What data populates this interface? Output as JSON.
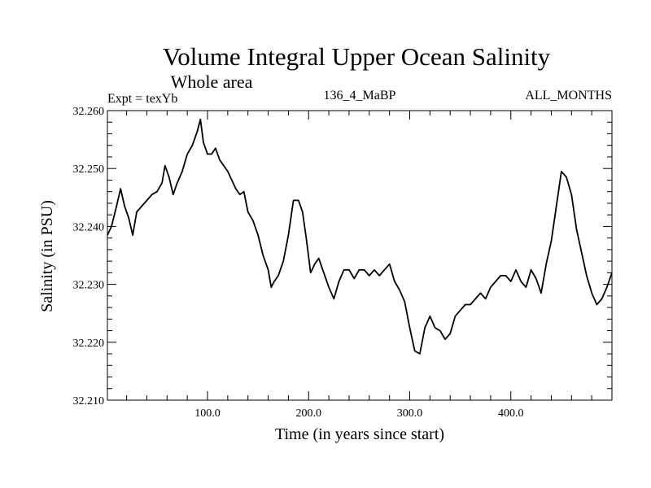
{
  "chart_data": {
    "type": "line",
    "title": "Volume Integral Upper Ocean Salinity",
    "subtitle": "Whole area",
    "header_left": "Expt = texYb",
    "header_center": "136_4_MaBP",
    "header_right": "ALL_MONTHS",
    "xlabel": "Time (in years since start)",
    "ylabel": "Salinity (in PSU)",
    "xlim": [
      1,
      500
    ],
    "ylim": [
      32.21,
      32.26
    ],
    "x_ticks": [
      100,
      200,
      300,
      400
    ],
    "x_tick_labels": [
      "100.0",
      "200.0",
      "300.0",
      "400.0"
    ],
    "y_ticks": [
      32.21,
      32.22,
      32.23,
      32.24,
      32.25,
      32.26
    ],
    "y_tick_labels": [
      "32.210",
      "32.220",
      "32.230",
      "32.240",
      "32.250",
      "32.260"
    ],
    "grid": false,
    "series": [
      {
        "color": "#000000",
        "x": [
          1,
          5,
          10,
          14,
          18,
          22,
          26,
          30,
          35,
          40,
          45,
          50,
          55,
          58,
          62,
          66,
          70,
          75,
          80,
          85,
          90,
          93,
          96,
          100,
          104,
          108,
          112,
          116,
          120,
          124,
          128,
          132,
          136,
          140,
          145,
          150,
          155,
          160,
          163,
          166,
          170,
          175,
          180,
          185,
          190,
          194,
          198,
          202,
          206,
          210,
          215,
          220,
          225,
          230,
          235,
          240,
          245,
          250,
          255,
          260,
          265,
          270,
          275,
          280,
          285,
          290,
          295,
          300,
          305,
          310,
          315,
          320,
          325,
          330,
          335,
          340,
          345,
          350,
          355,
          360,
          365,
          370,
          375,
          380,
          385,
          390,
          395,
          400,
          405,
          410,
          415,
          420,
          425,
          430,
          435,
          440,
          445,
          450,
          455,
          460,
          465,
          470,
          475,
          480,
          485,
          490,
          495,
          500
        ],
        "y": [
          32.2385,
          32.24,
          32.2435,
          32.2465,
          32.2435,
          32.2415,
          32.2385,
          32.2425,
          32.2435,
          32.2445,
          32.2455,
          32.246,
          32.2475,
          32.2505,
          32.2485,
          32.2455,
          32.2475,
          32.2495,
          32.2525,
          32.254,
          32.2565,
          32.2585,
          32.2545,
          32.2525,
          32.2525,
          32.2535,
          32.2515,
          32.2505,
          32.2495,
          32.248,
          32.2465,
          32.2455,
          32.246,
          32.2425,
          32.241,
          32.2385,
          32.235,
          32.2325,
          32.2295,
          32.2305,
          32.2315,
          32.234,
          32.2385,
          32.2445,
          32.2445,
          32.2425,
          32.2375,
          32.232,
          32.2335,
          32.2345,
          32.232,
          32.2295,
          32.2275,
          32.2305,
          32.2325,
          32.2325,
          32.231,
          32.2325,
          32.2325,
          32.2315,
          32.2325,
          32.2315,
          32.2325,
          32.2335,
          32.2305,
          32.229,
          32.227,
          32.2225,
          32.2185,
          32.218,
          32.2225,
          32.2245,
          32.2225,
          32.222,
          32.2205,
          32.2215,
          32.2245,
          32.2255,
          32.2265,
          32.2265,
          32.2275,
          32.2285,
          32.2275,
          32.2295,
          32.2305,
          32.2315,
          32.2315,
          32.2305,
          32.2325,
          32.2305,
          32.2295,
          32.2325,
          32.231,
          32.2285,
          32.2335,
          32.2375,
          32.2435,
          32.2495,
          32.2485,
          32.2455,
          32.2395,
          32.2355,
          32.2315,
          32.2285,
          32.2265,
          32.2275,
          32.2295,
          32.232
        ]
      }
    ]
  }
}
